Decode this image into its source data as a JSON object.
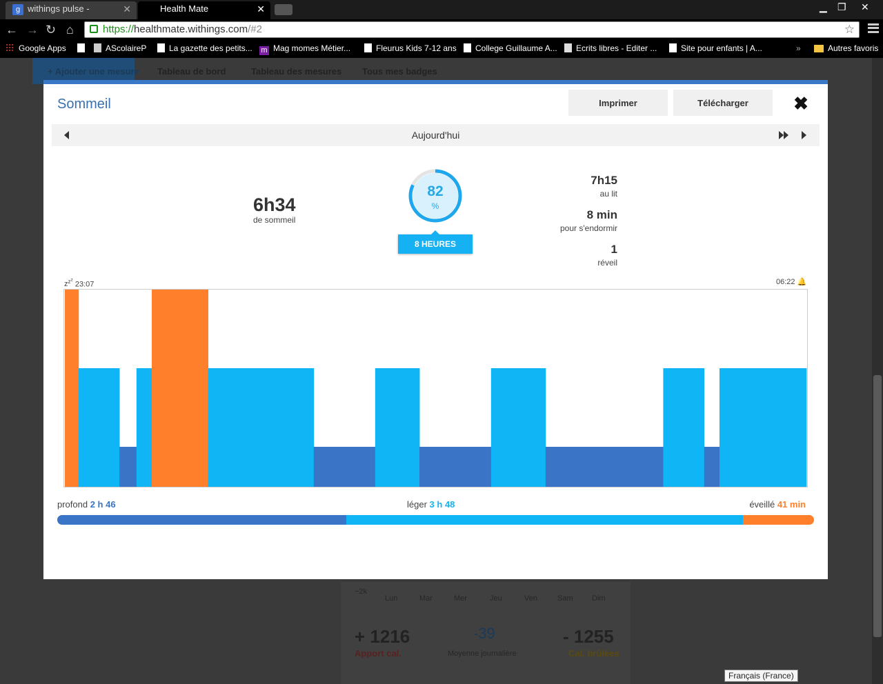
{
  "browser": {
    "tabs": [
      {
        "title": "withings pulse - Recherch",
        "icon": "google-favicon-icon"
      },
      {
        "title": "Health Mate",
        "icon": "health-mate-favicon-icon"
      }
    ],
    "url": {
      "protocol": "https://",
      "host": "healthmate.withings.com",
      "path": "/#2"
    },
    "bookmarks": [
      "Google Apps",
      "AScolaireP",
      "La gazette des petits...",
      "Mag momes Métier...",
      "Fleurus Kids 7-12 ans",
      "College Guillaume A...",
      "Ecrits libres - Editer ...",
      "Site pour enfants | A..."
    ],
    "bookmarks_overflow": "»",
    "other_bookmarks": "Autres favoris"
  },
  "page": {
    "nav": {
      "add": "Ajouter une mesure",
      "dashboard": "Tableau de bord",
      "measures": "Tableau des mesures",
      "badges": "Tous mes badges"
    },
    "background_card": {
      "axis_value": "−2k",
      "days": [
        "Lun",
        "Mar",
        "Mer",
        "Jeu",
        "Ven",
        "Sam",
        "Dim"
      ],
      "intake_value": "+ 1216",
      "intake_label": "Apport cal.",
      "avg_value": "-39",
      "avg_label": "Moyenne journalière",
      "burned_value": "- 1255",
      "burned_label": "Cal. brûlées"
    },
    "tooltip": "Français (France)"
  },
  "modal": {
    "title": "Sommeil",
    "print_label": "Imprimer",
    "download_label": "Télécharger",
    "close_symbol": "✖",
    "date_label": "Aujourd'hui",
    "sleep_total": "6h34",
    "sleep_total_label": "de sommeil",
    "score": {
      "value": "82",
      "unit": "%",
      "fraction": 0.82
    },
    "goal_label": "8 HEURES",
    "stats": [
      {
        "value": "7h15",
        "label": "au lit"
      },
      {
        "value": "8 min",
        "label": "pour s'endormir"
      },
      {
        "value": "1",
        "label": "réveil"
      }
    ],
    "time_start": "23:07",
    "time_end": "06:22",
    "legend": {
      "deep_label": "profond",
      "deep_value": "2 h 46",
      "light_label": "léger",
      "light_value": "3 h 48",
      "awake_label": "éveillé",
      "awake_value": "41 min"
    },
    "colors": {
      "deep": "#3a74c6",
      "light": "#10b5f5",
      "awake": "#ff7f2a",
      "accent": "#3a78c8"
    }
  },
  "chart_data": {
    "type": "bar",
    "x_unit": "minutes from 23:07",
    "start": "23:07",
    "end": "06:22",
    "levels": {
      "awake": 3,
      "light": 2,
      "deep": 1
    },
    "segments": [
      {
        "stage": "awake",
        "start": 0,
        "end": 8
      },
      {
        "stage": "light",
        "start": 8,
        "end": 32
      },
      {
        "stage": "deep",
        "start": 32,
        "end": 42
      },
      {
        "stage": "light",
        "start": 42,
        "end": 51
      },
      {
        "stage": "awake",
        "start": 51,
        "end": 84
      },
      {
        "stage": "light",
        "start": 84,
        "end": 146
      },
      {
        "stage": "deep",
        "start": 146,
        "end": 182
      },
      {
        "stage": "light",
        "start": 182,
        "end": 208
      },
      {
        "stage": "deep",
        "start": 208,
        "end": 250
      },
      {
        "stage": "light",
        "start": 250,
        "end": 282
      },
      {
        "stage": "deep",
        "start": 282,
        "end": 351
      },
      {
        "stage": "light",
        "start": 351,
        "end": 375
      },
      {
        "stage": "deep",
        "start": 375,
        "end": 384
      },
      {
        "stage": "light",
        "start": 384,
        "end": 435
      }
    ],
    "stage_totals_minutes": {
      "deep": 166,
      "light": 228,
      "awake": 41
    }
  }
}
